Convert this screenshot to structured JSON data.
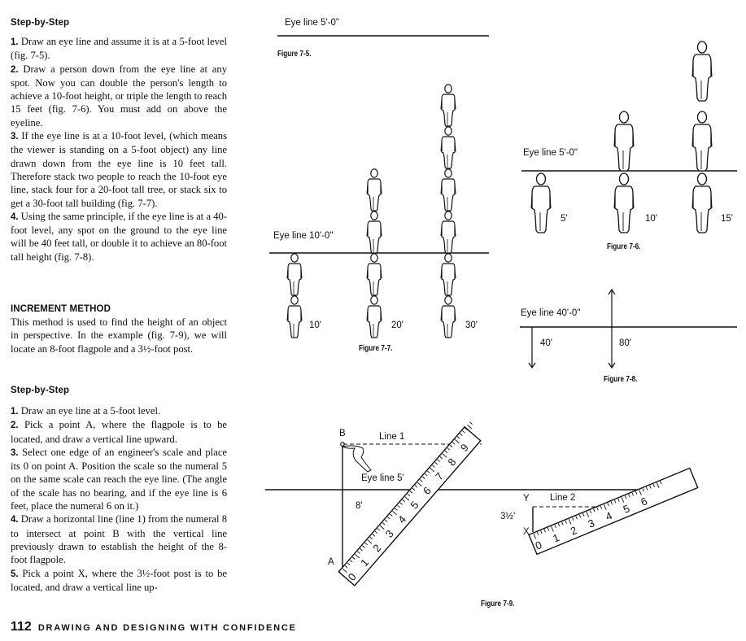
{
  "left_column": {
    "heading1": "Step-by-Step",
    "steps1": [
      {
        "num": "1.",
        "text": "Draw an eye line and assume it is at a 5-foot level (fig. 7-5)."
      },
      {
        "num": "2.",
        "text": "Draw a person down from the eye line at any spot. Now you can double the person's length to achieve a 10-foot height, or triple the length to reach 15 feet (fig. 7-6). You must add on above the eyeline."
      },
      {
        "num": "3.",
        "text": "If the eye line is at a 10-foot level, (which means the viewer is standing on a 5-foot object) any line drawn down from the eye line is 10 feet tall. Therefore stack two people to reach the 10-foot eye line, stack four for a 20-foot tall tree, or stack six to get a 30-foot tall building (fig. 7-7)."
      },
      {
        "num": "4.",
        "text": "Using the same principle, if the eye line is at a 40-foot level, any spot on the ground to the eye line will be 40 feet tall, or double it to achieve an 80-foot tall height (fig. 7-8)."
      }
    ],
    "heading2": "INCREMENT METHOD",
    "increment_text": "This method is used to find the height of an object in perspective. In the example (fig. 7-9), we will locate an 8-foot flagpole and a 3½-foot post.",
    "heading3": "Step-by-Step",
    "steps2": [
      {
        "num": "1.",
        "text": "Draw an eye line at a 5-foot level."
      },
      {
        "num": "2.",
        "text": "Pick a point A, where the flagpole is to be located, and draw a vertical line upward."
      },
      {
        "num": "3.",
        "text": "Select one edge of an engineer's scale and place its 0 on point A. Position the scale so the numeral 5 on the same scale can reach the eye line. (The angle of the scale has no bearing, and if the eye line is 6 feet, place the numeral 6 on it.)"
      },
      {
        "num": "4.",
        "text": "Draw a horizontal line (line 1) from the numeral 8 to intersect at point B with the vertical line previously drawn to establish the height of the 8-foot flagpole."
      },
      {
        "num": "5.",
        "text": "Pick a point X, where the 3½-foot post is to be located, and draw a vertical line up-"
      }
    ]
  },
  "fig75": {
    "eye_line": "Eye line 5'-0\"",
    "caption": "Figure 7-5."
  },
  "fig76": {
    "eye_line": "Eye line 5'-0\"",
    "caption": "Figure 7-6.",
    "heights": [
      "5'",
      "10'",
      "15'"
    ]
  },
  "fig77": {
    "eye_line": "Eye line 10'-0\"",
    "caption": "Figure 7-7.",
    "heights": [
      "10'",
      "20'",
      "30'"
    ]
  },
  "fig78": {
    "eye_line": "Eye line 40'-0\"",
    "caption": "Figure 7-8.",
    "heights": [
      "40'",
      "80'"
    ]
  },
  "fig79": {
    "caption": "Figure 7-9.",
    "line1": "Line 1",
    "line2": "Line 2",
    "eye_line": "Eye line 5'",
    "point_b": "B",
    "point_a": "A",
    "point_x": "X",
    "point_y": "Y",
    "height_a": "8'",
    "height_x": "3½'",
    "scale1_ticks": [
      "0",
      "1",
      "2",
      "3",
      "4",
      "5",
      "6",
      "7",
      "8",
      "9"
    ],
    "scale2_ticks": [
      "0",
      "1",
      "2",
      "3",
      "4",
      "5",
      "6"
    ]
  },
  "footer": {
    "page_number": "112",
    "book_title": "DRAWING AND DESIGNING WITH CONFIDENCE"
  }
}
